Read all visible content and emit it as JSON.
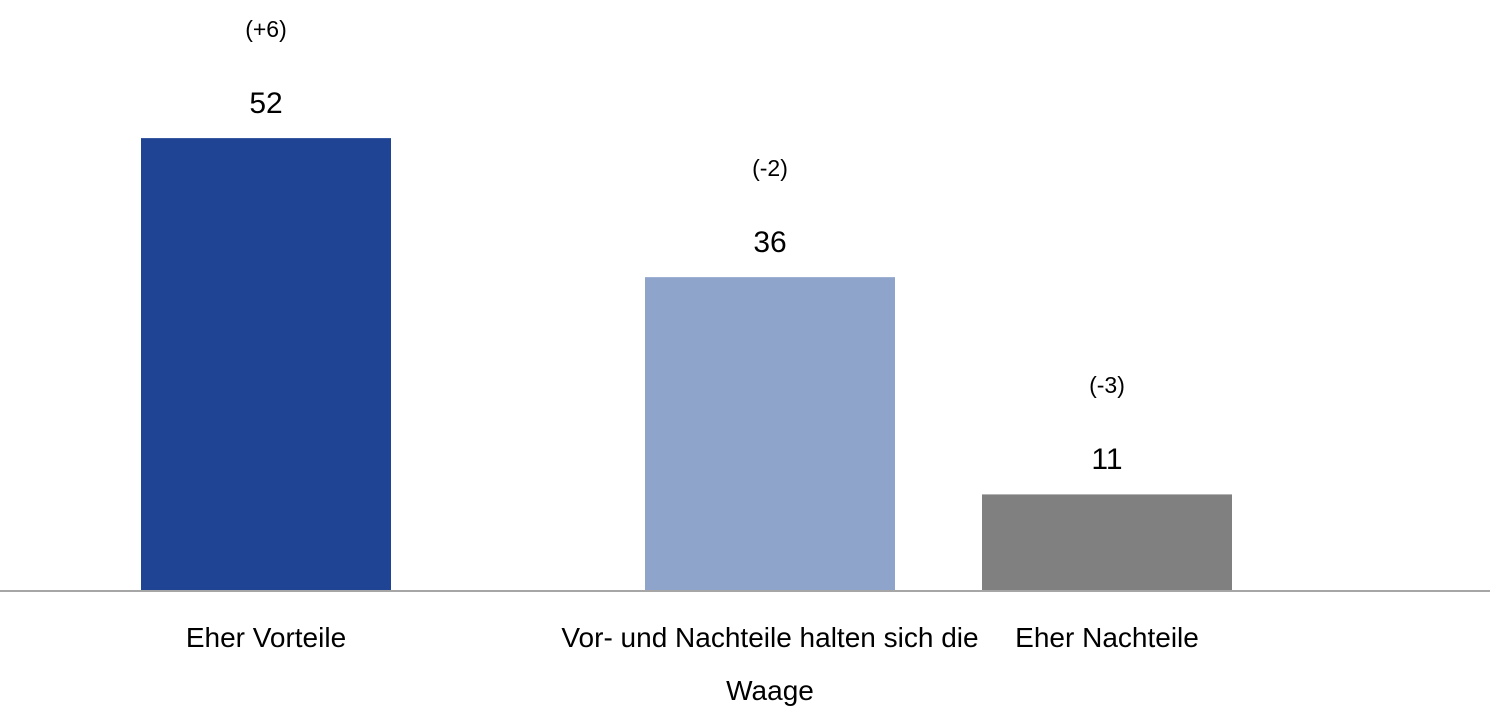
{
  "chart_data": {
    "type": "bar",
    "categories": [
      "Eher Vorteile",
      "Vor- und Nachteile halten sich die Waage",
      "Eher Nachteile"
    ],
    "values": [
      52,
      36,
      11
    ],
    "colors": [
      "#1f4493",
      "#8fa4cb",
      "#808080"
    ],
    "annotations": [
      "(+6)",
      "(-2)",
      "(-3)"
    ]
  }
}
